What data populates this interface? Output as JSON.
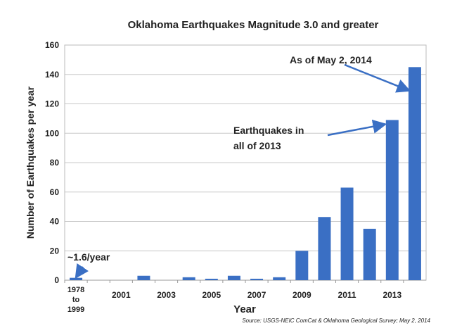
{
  "chart_data": {
    "type": "bar",
    "title": "Oklahoma Earthquakes Magnitude 3.0 and greater",
    "xlabel": "Year",
    "ylabel": "Number of Earthquakes per year",
    "ylim": [
      0,
      160
    ],
    "yticks": [
      0,
      20,
      40,
      60,
      80,
      100,
      120,
      140,
      160
    ],
    "grid": true,
    "bar_color": "#3a6fc4",
    "categories": [
      "1978 to 1999",
      "2000",
      "2001",
      "2002",
      "2003",
      "2004",
      "2005",
      "2006",
      "2007",
      "2008",
      "2009",
      "2010",
      "2011",
      "2012",
      "2013",
      "2014"
    ],
    "tick_labels": [
      [
        "1978",
        "to",
        "1999"
      ],
      "",
      "2001",
      "",
      "2003",
      "",
      "2005",
      "",
      "2007",
      "",
      "2009",
      "",
      "2011",
      "",
      "2013",
      ""
    ],
    "values": [
      1.6,
      0,
      0,
      3,
      0,
      2,
      1,
      3,
      1,
      2,
      20,
      43,
      63,
      35,
      109,
      145
    ],
    "annotations": [
      {
        "text": "~1.6/year",
        "target": "1978 to 1999"
      },
      {
        "text": [
          "Earthquakes in",
          "all of 2013"
        ],
        "target": "2013"
      },
      {
        "text": "As of May 2, 2014",
        "target": "2014"
      }
    ],
    "source": "Source: USGS-NEIC ComCat & Oklahoma Geological Survey; May 2, 2014"
  }
}
